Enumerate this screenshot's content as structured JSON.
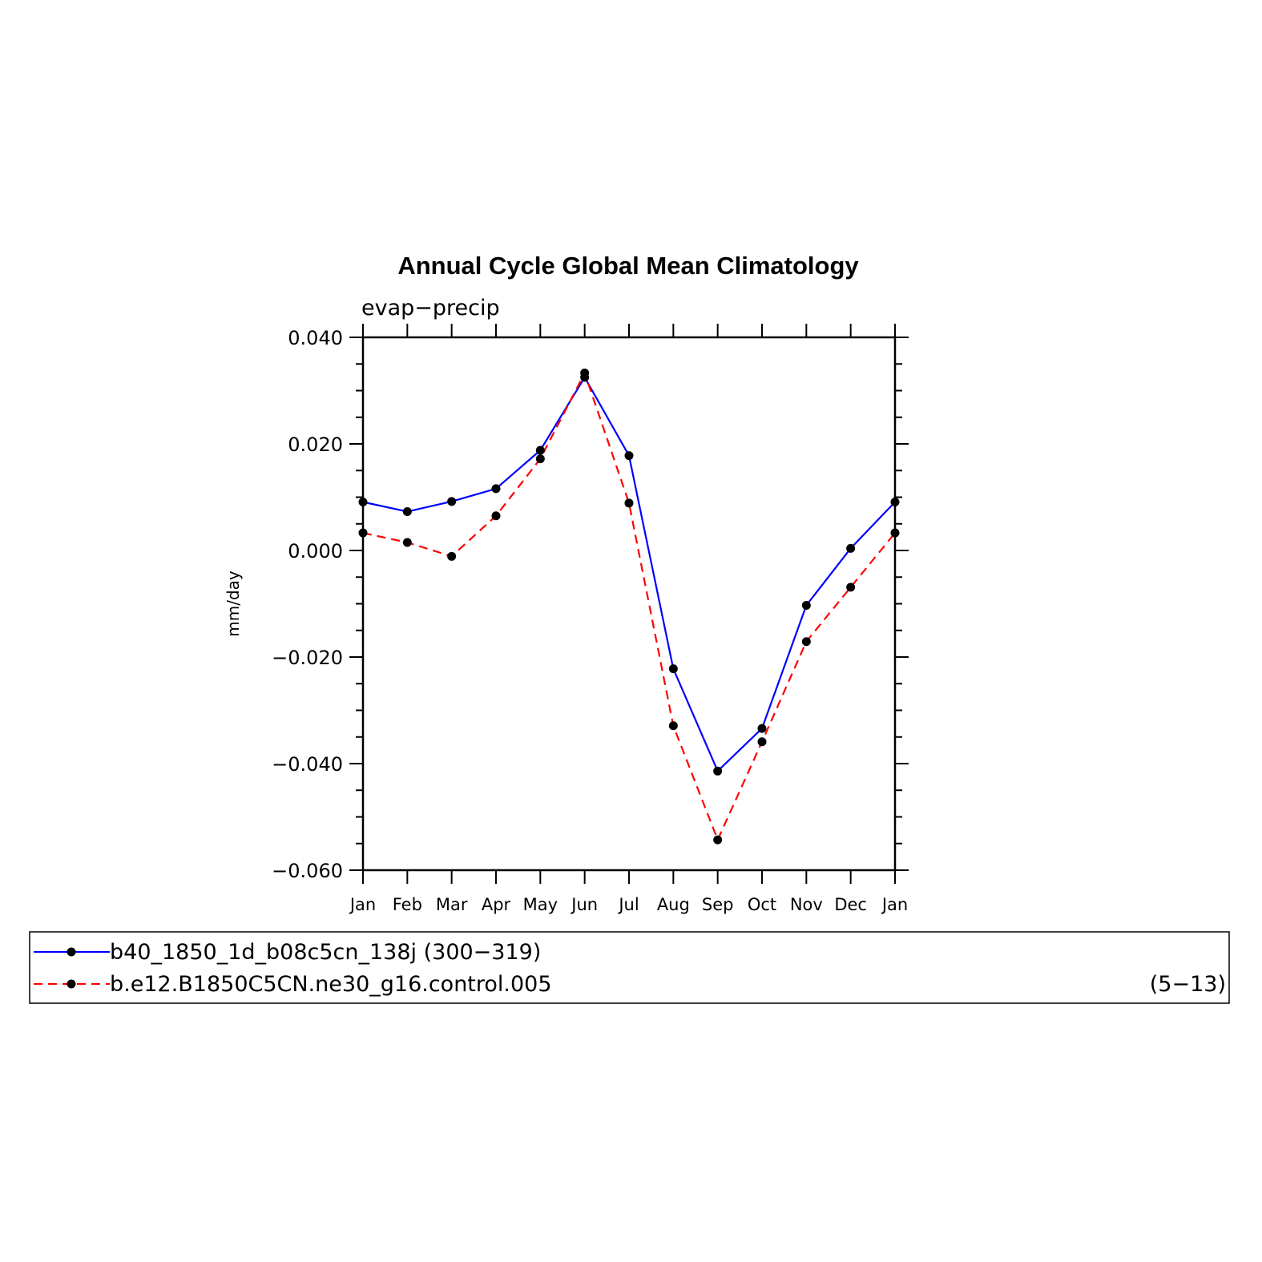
{
  "chart_data": {
    "type": "line",
    "title": "Annual Cycle Global Mean Climatology",
    "subtitle": "evap−precip",
    "ylabel": "mm/day",
    "xlabel": "",
    "categories": [
      "Jan",
      "Feb",
      "Mar",
      "Apr",
      "May",
      "Jun",
      "Jul",
      "Aug",
      "Sep",
      "Oct",
      "Nov",
      "Dec",
      "Jan"
    ],
    "ylim": [
      -0.06,
      0.04
    ],
    "yticks": [
      0.04,
      0.02,
      0.0,
      -0.02,
      -0.04,
      -0.06
    ],
    "ytick_labels": [
      "0.040",
      "0.020",
      "0.000",
      "−0.020",
      "−0.040",
      "−0.060"
    ],
    "grid": false,
    "legend_placement": "bottom",
    "series": [
      {
        "name": "b40_1850_1d_b08c5cn_138j (300−319)",
        "color": "#0000ff",
        "dash": "solid",
        "marker": "filled-circle",
        "values": [
          0.0091,
          0.0073,
          0.0092,
          0.0116,
          0.0188,
          0.0325,
          0.0178,
          -0.0222,
          -0.0414,
          -0.0334,
          -0.0103,
          0.0004,
          0.0091
        ]
      },
      {
        "name": "b.e12.B1850C5CN.ne30_g16.control.005",
        "name_suffix": "(5−13)",
        "color": "#ff0000",
        "dash": "dashed",
        "marker": "filled-circle",
        "values": [
          0.0033,
          0.0015,
          -0.0011,
          0.0065,
          0.0172,
          0.0333,
          0.0089,
          -0.0329,
          -0.0543,
          -0.0359,
          -0.0171,
          -0.0069,
          0.0033
        ]
      }
    ]
  }
}
